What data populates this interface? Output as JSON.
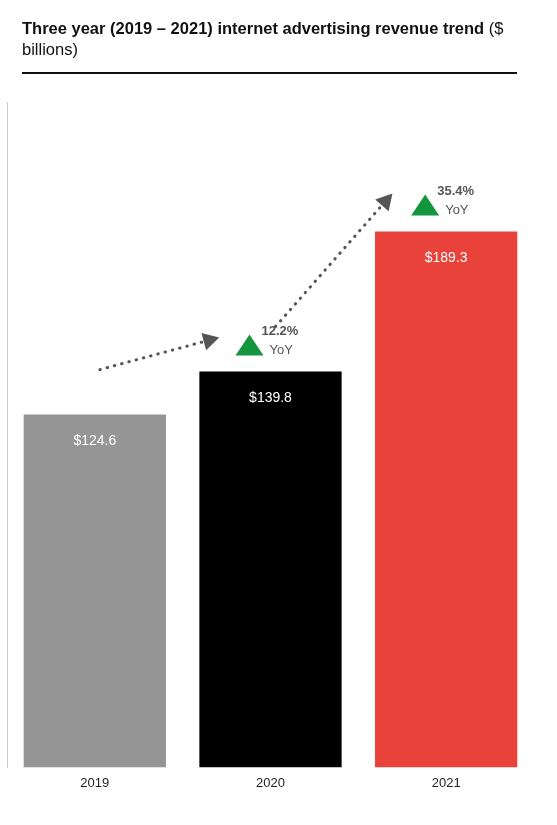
{
  "chart_data": {
    "type": "bar",
    "title": "Three year (2019 – 2021) internet advertising revenue trend ($ billions)",
    "categories": [
      "2019",
      "2020",
      "2021"
    ],
    "values": [
      124.6,
      139.8,
      189.3
    ],
    "value_labels": [
      "$124.6",
      "$139.8",
      "$189.3"
    ],
    "data_labels": true,
    "colors": [
      "#959595",
      "#000000",
      "#e8423a"
    ],
    "ylim": [
      0,
      235
    ],
    "grid": false,
    "tick_labels": "x",
    "annotations": [
      {
        "category": "2020",
        "label": "12.2%",
        "text": "YoY"
      },
      {
        "category": "2021",
        "label": "35.4%",
        "text": "YoY"
      }
    ]
  }
}
